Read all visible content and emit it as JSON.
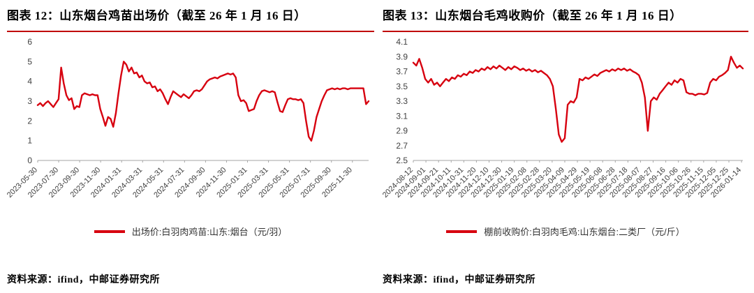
{
  "accent_color": "#c00000",
  "chart_data": [
    {
      "type": "line",
      "title": "图表 12：山东烟台鸡苗出场价（截至 26 年 1 月 16 日）",
      "legend": "出场价:白羽肉鸡苗:山东:烟台（元/羽）",
      "source": "资料来源：ifind，中邮证券研究所",
      "line_color": "#d7000f",
      "xlabel": "",
      "ylabel": "",
      "grid": false,
      "legend_position": "bottom-center",
      "ylim": [
        0,
        6
      ],
      "yticks": [
        "0",
        "1",
        "2",
        "3",
        "4",
        "5",
        "6"
      ],
      "xtick_end_fraction": 0.951,
      "xticklabels": [
        "2023-05-30",
        "2023-07-30",
        "2023-09-30",
        "2023-11-30",
        "2024-01-31",
        "2024-03-31",
        "2024-05-31",
        "2024-07-31",
        "2024-09-30",
        "2024-11-30",
        "2025-01-31",
        "2025-03-31",
        "2025-05-31",
        "2025-07-31",
        "2025-09-30",
        "2025-11-30"
      ],
      "values": [
        2.8,
        2.9,
        2.75,
        2.9,
        3.0,
        2.85,
        2.7,
        2.9,
        3.1,
        4.7,
        3.9,
        3.3,
        3.05,
        3.15,
        2.6,
        2.75,
        2.7,
        3.3,
        3.4,
        3.35,
        3.3,
        3.35,
        3.3,
        3.3,
        2.6,
        2.2,
        1.75,
        2.2,
        2.1,
        1.7,
        2.4,
        3.4,
        4.3,
        5.0,
        4.85,
        4.5,
        4.7,
        4.4,
        4.45,
        4.2,
        4.3,
        4.0,
        3.9,
        3.95,
        3.7,
        3.75,
        3.5,
        3.6,
        3.4,
        3.1,
        2.85,
        3.2,
        3.5,
        3.4,
        3.3,
        3.2,
        3.35,
        3.25,
        3.15,
        3.3,
        3.5,
        3.55,
        3.5,
        3.6,
        3.8,
        4.0,
        4.1,
        4.15,
        4.2,
        4.15,
        4.25,
        4.3,
        4.35,
        4.4,
        4.35,
        4.4,
        4.2,
        3.3,
        3.0,
        3.05,
        2.9,
        2.5,
        2.55,
        2.6,
        3.0,
        3.3,
        3.5,
        3.55,
        3.5,
        3.45,
        3.5,
        3.45,
        2.95,
        2.5,
        2.45,
        2.8,
        3.1,
        3.15,
        3.1,
        3.1,
        3.05,
        3.1,
        2.9,
        2.0,
        1.2,
        1.0,
        1.5,
        2.2,
        2.6,
        3.0,
        3.3,
        3.55,
        3.6,
        3.65,
        3.6,
        3.65,
        3.6,
        3.65,
        3.65,
        3.6,
        3.65,
        3.65,
        3.65,
        3.65,
        3.65,
        3.65,
        2.85,
        3.0
      ]
    },
    {
      "type": "line",
      "title": "图表 13：山东烟台毛鸡收购价（截至 26 年 1 月 16 日）",
      "legend": "棚前收购价:白羽肉毛鸡:山东烟台:二类厂（元/斤）",
      "source": "资料来源：ifind，中邮证券研究所",
      "line_color": "#d7000f",
      "xlabel": "",
      "ylabel": "",
      "grid": false,
      "legend_position": "bottom-center",
      "ylim": [
        2.5,
        4.1
      ],
      "yticks": [
        "2.5",
        "2.7",
        "2.9",
        "3.1",
        "3.3",
        "3.5",
        "3.7",
        "3.9",
        "4.1"
      ],
      "xtick_end_fraction": 0.996,
      "xticklabels": [
        "2024-08-12",
        "2024-09-01",
        "2024-09-21",
        "2024-10-11",
        "2024-10-31",
        "2024-11-20",
        "2024-12-10",
        "2024-12-30",
        "2025-01-19",
        "2025-02-08",
        "2025-02-28",
        "2025-03-20",
        "2025-04-09",
        "2025-04-29",
        "2025-05-19",
        "2025-06-08",
        "2025-06-28",
        "2025-07-18",
        "2025-08-07",
        "2025-08-27",
        "2025-09-16",
        "2025-10-06",
        "2025-10-26",
        "2025-11-15",
        "2025-12-05",
        "2025-12-25",
        "2026-01-14"
      ],
      "values": [
        3.82,
        3.78,
        3.87,
        3.75,
        3.6,
        3.55,
        3.6,
        3.52,
        3.55,
        3.5,
        3.55,
        3.6,
        3.57,
        3.62,
        3.6,
        3.65,
        3.63,
        3.67,
        3.65,
        3.7,
        3.68,
        3.72,
        3.7,
        3.74,
        3.72,
        3.76,
        3.73,
        3.77,
        3.74,
        3.78,
        3.75,
        3.72,
        3.76,
        3.73,
        3.77,
        3.75,
        3.72,
        3.74,
        3.71,
        3.73,
        3.7,
        3.72,
        3.69,
        3.71,
        3.68,
        3.65,
        3.6,
        3.5,
        3.2,
        2.85,
        2.75,
        2.8,
        3.25,
        3.3,
        3.28,
        3.35,
        3.6,
        3.58,
        3.62,
        3.6,
        3.63,
        3.66,
        3.64,
        3.68,
        3.7,
        3.72,
        3.7,
        3.73,
        3.71,
        3.74,
        3.72,
        3.74,
        3.71,
        3.73,
        3.7,
        3.68,
        3.65,
        3.55,
        3.35,
        2.9,
        3.3,
        3.35,
        3.32,
        3.4,
        3.45,
        3.5,
        3.55,
        3.52,
        3.58,
        3.55,
        3.6,
        3.58,
        3.42,
        3.4,
        3.4,
        3.38,
        3.4,
        3.4,
        3.39,
        3.41,
        3.55,
        3.6,
        3.58,
        3.63,
        3.65,
        3.68,
        3.72,
        3.9,
        3.82,
        3.75,
        3.78,
        3.74
      ]
    }
  ]
}
